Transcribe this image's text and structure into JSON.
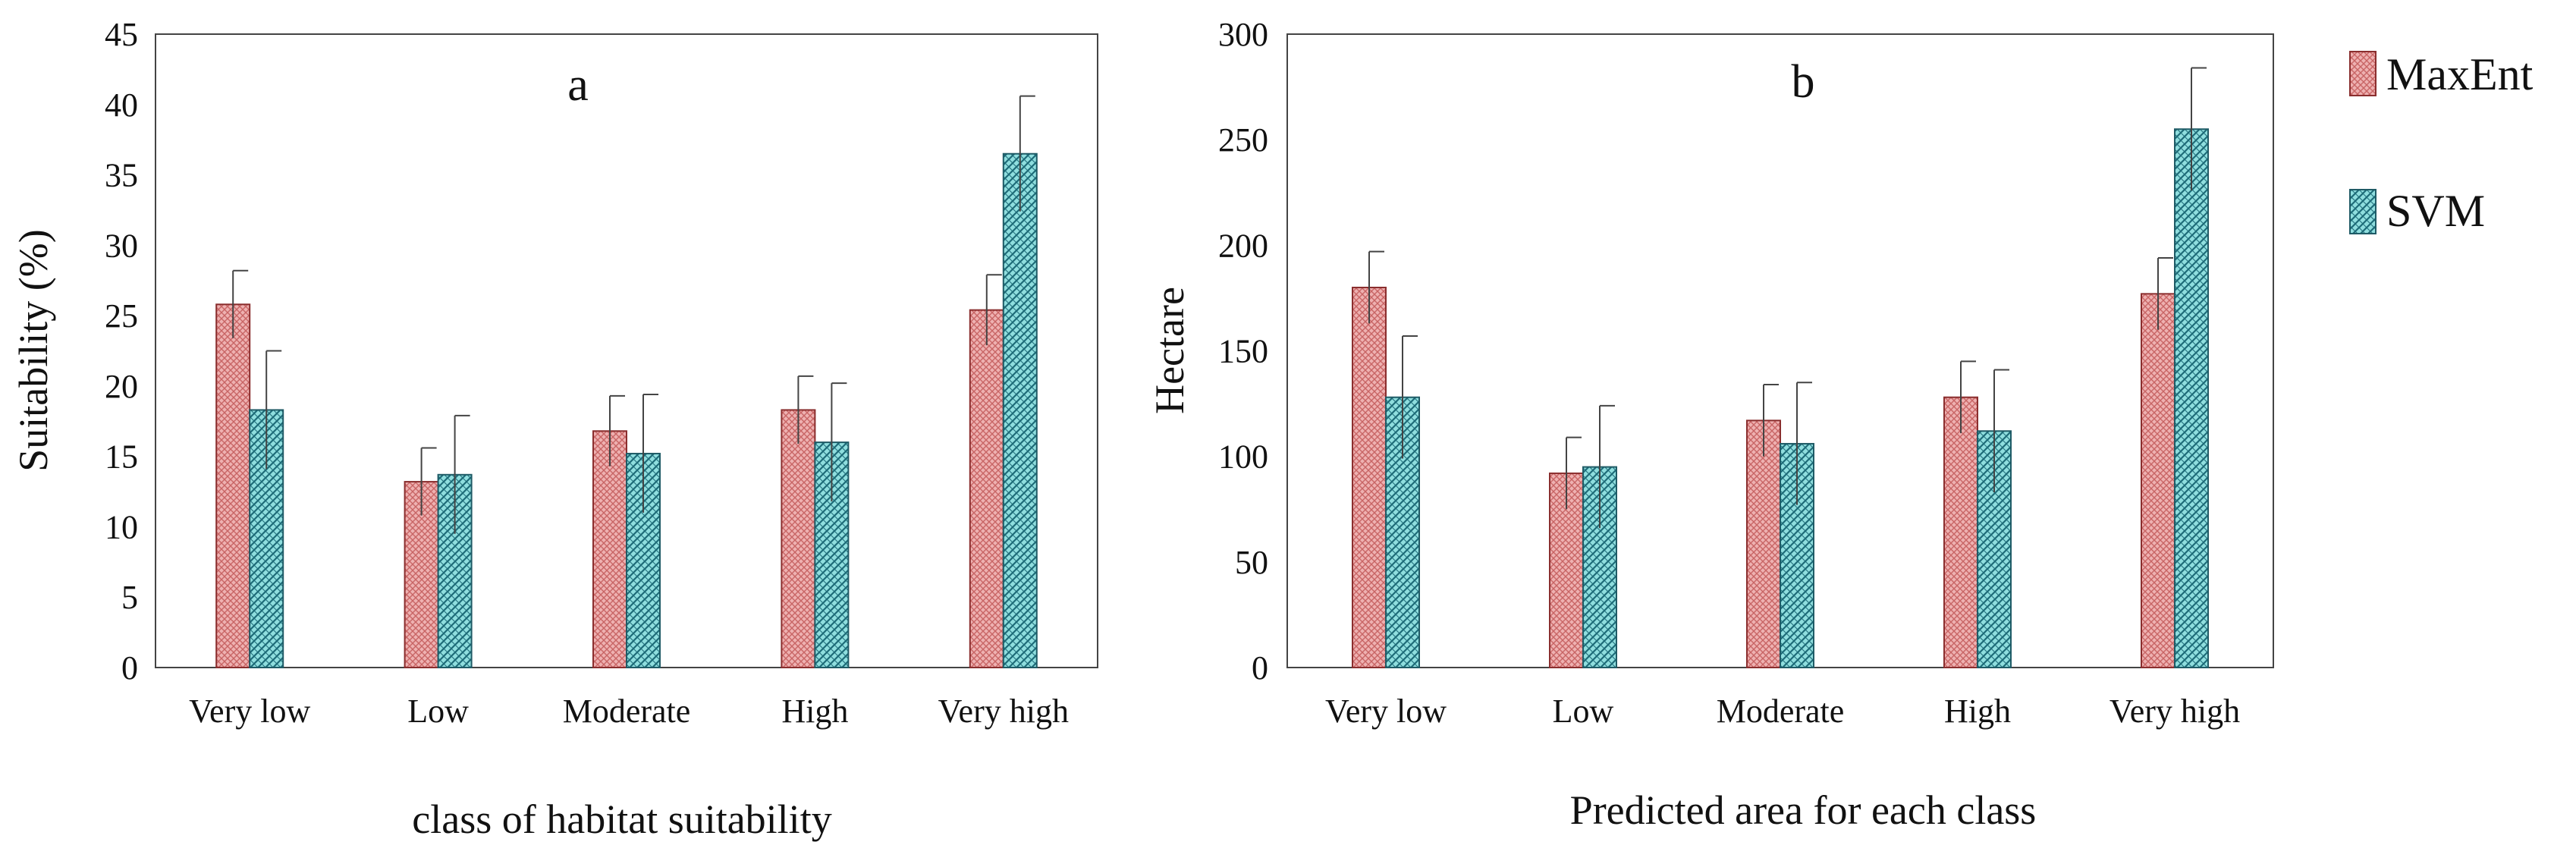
{
  "colors": {
    "maxent_fill": "#e89a9a",
    "maxent_stroke": "#8a2e2e",
    "svm_fill": "#7fd6d6",
    "svm_stroke": "#1f5b66",
    "axis": "#444444"
  },
  "legend": {
    "items": [
      {
        "name": "MaxEnt"
      },
      {
        "name": "SVM"
      }
    ]
  },
  "chart_data": [
    {
      "type": "bar",
      "panel_label": "a",
      "categories": [
        "Very low",
        "Low",
        "Moderate",
        "High",
        "Very high"
      ],
      "ylabel": "Suitability (%)",
      "xlabel": "class of habitat suitability",
      "ylim": [
        0,
        45
      ],
      "yticks": [
        "0",
        "5",
        "10",
        "15",
        "20",
        "25",
        "30",
        "35",
        "40",
        "45"
      ],
      "series": [
        {
          "name": "MaxEnt",
          "values": [
            25.8,
            13.2,
            16.8,
            18.3,
            25.4
          ],
          "errors": [
            2.4,
            2.4,
            2.5,
            2.4,
            2.5
          ]
        },
        {
          "name": "SVM",
          "values": [
            18.3,
            13.7,
            15.2,
            16.0,
            36.5
          ],
          "errors": [
            4.2,
            4.2,
            4.2,
            4.2,
            4.1
          ]
        }
      ]
    },
    {
      "type": "bar",
      "panel_label": "b",
      "categories": [
        "Very low",
        "Low",
        "Moderate",
        "High",
        "Very high"
      ],
      "ylabel": "Hectare",
      "xlabel": "Predicted area for each class",
      "ylim": [
        0,
        300
      ],
      "yticks": [
        "0",
        "50",
        "100",
        "150",
        "200",
        "250",
        "300"
      ],
      "series": [
        {
          "name": "MaxEnt",
          "values": [
            180,
            92,
            117,
            128,
            177
          ],
          "errors": [
            17,
            17,
            17,
            17,
            17
          ]
        },
        {
          "name": "SVM",
          "values": [
            128,
            95,
            106,
            112,
            255
          ],
          "errors": [
            29,
            29,
            29,
            29,
            29
          ]
        }
      ]
    }
  ]
}
